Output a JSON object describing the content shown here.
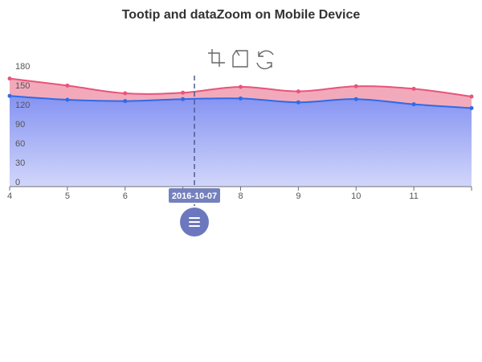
{
  "title": "Tootip and dataZoom on Mobile Device",
  "toolbox": {
    "icons": [
      "zoom-select-icon",
      "zoom-back-icon",
      "restore-icon"
    ]
  },
  "pointer": {
    "label": "2016-10-07",
    "x": 7.2
  },
  "colors": {
    "series_top_line": "#E8547A",
    "series_top_fill": "#F2A9BA",
    "series_bottom_line": "#2F6BE8",
    "series_bottom_fill_top": "#8593F2",
    "series_bottom_fill_bottom": "#D2D6FA",
    "pointer": "#4D5B8F",
    "handle": "#6C78BE"
  },
  "chart_data": {
    "type": "area",
    "title": "Tootip and dataZoom on Mobile Device",
    "x": [
      4,
      5,
      6,
      7,
      8,
      9,
      10,
      11,
      12
    ],
    "x_tick_labels": [
      "4",
      "5",
      "6",
      "",
      "8",
      "9",
      "10",
      "11"
    ],
    "xlim": [
      4,
      12
    ],
    "ylim": [
      0,
      180
    ],
    "y_ticks": [
      0,
      30,
      60,
      90,
      120,
      150,
      180
    ],
    "series": [
      {
        "values": [
          168,
          157,
          145,
          146,
          155,
          148,
          156,
          152,
          140
        ]
      },
      {
        "values": [
          141,
          135,
          133,
          136,
          137,
          131,
          136,
          128,
          122
        ]
      }
    ],
    "grid": false,
    "legend": "none"
  }
}
